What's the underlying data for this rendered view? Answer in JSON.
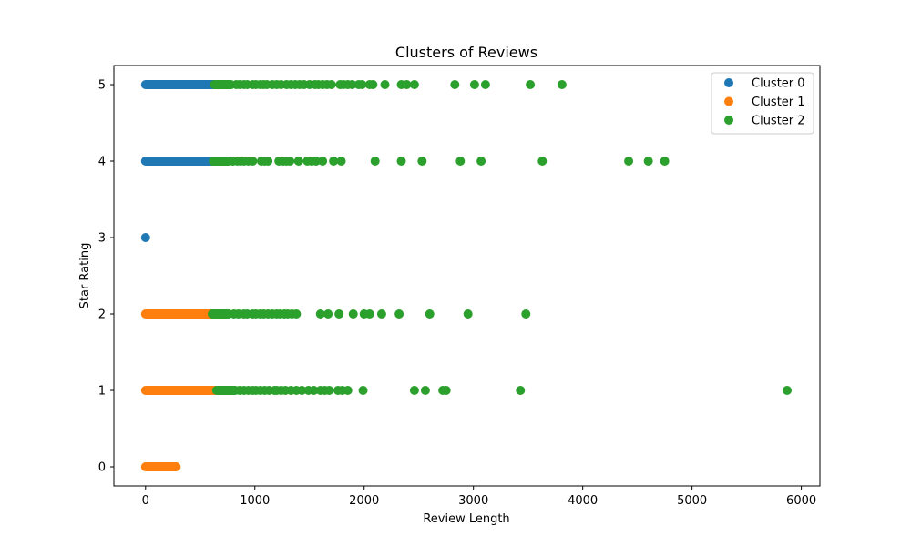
{
  "chart_data": {
    "type": "scatter",
    "title": "Clusters of Reviews",
    "xlabel": "Review Length",
    "ylabel": "Star Rating",
    "xlim": [
      -290,
      6170
    ],
    "ylim": [
      -0.25,
      5.25
    ],
    "xticks": [
      0,
      1000,
      2000,
      3000,
      4000,
      5000,
      6000
    ],
    "yticks": [
      0,
      1,
      2,
      3,
      4,
      5
    ],
    "grid": false,
    "legend_position": "top-right",
    "series": [
      {
        "name": "Cluster 0",
        "color": "#1f77b4",
        "segments": [
          {
            "y": 5,
            "x_start": 0,
            "x_end": 620
          },
          {
            "y": 4,
            "x_start": 0,
            "x_end": 610
          }
        ],
        "points": [
          [
            0,
            3
          ]
        ]
      },
      {
        "name": "Cluster 1",
        "color": "#ff7f0e",
        "segments": [
          {
            "y": 2,
            "x_start": 0,
            "x_end": 600
          },
          {
            "y": 1,
            "x_start": 0,
            "x_end": 640
          },
          {
            "y": 0,
            "x_start": 0,
            "x_end": 280
          }
        ],
        "points": []
      },
      {
        "name": "Cluster 2",
        "color": "#2ca02c",
        "segments": [
          {
            "y": 5,
            "x_start": 630,
            "x_end": 780
          },
          {
            "y": 4,
            "x_start": 620,
            "x_end": 760
          },
          {
            "y": 2,
            "x_start": 610,
            "x_end": 760
          },
          {
            "y": 1,
            "x_start": 650,
            "x_end": 820
          }
        ],
        "points": [
          [
            830,
            5
          ],
          [
            860,
            5
          ],
          [
            900,
            5
          ],
          [
            930,
            5
          ],
          [
            980,
            5
          ],
          [
            1010,
            5
          ],
          [
            1050,
            5
          ],
          [
            1080,
            5
          ],
          [
            1110,
            5
          ],
          [
            1160,
            5
          ],
          [
            1200,
            5
          ],
          [
            1240,
            5
          ],
          [
            1290,
            5
          ],
          [
            1330,
            5
          ],
          [
            1370,
            5
          ],
          [
            1410,
            5
          ],
          [
            1450,
            5
          ],
          [
            1500,
            5
          ],
          [
            1550,
            5
          ],
          [
            1580,
            5
          ],
          [
            1620,
            5
          ],
          [
            1660,
            5
          ],
          [
            1700,
            5
          ],
          [
            1780,
            5
          ],
          [
            1810,
            5
          ],
          [
            1850,
            5
          ],
          [
            1890,
            5
          ],
          [
            1950,
            5
          ],
          [
            1980,
            5
          ],
          [
            2050,
            5
          ],
          [
            2080,
            5
          ],
          [
            2190,
            5
          ],
          [
            2340,
            5
          ],
          [
            2390,
            5
          ],
          [
            2460,
            5
          ],
          [
            2830,
            5
          ],
          [
            3010,
            5
          ],
          [
            3110,
            5
          ],
          [
            3520,
            5
          ],
          [
            3810,
            5
          ],
          [
            800,
            4
          ],
          [
            840,
            4
          ],
          [
            870,
            4
          ],
          [
            900,
            4
          ],
          [
            940,
            4
          ],
          [
            980,
            4
          ],
          [
            1060,
            4
          ],
          [
            1090,
            4
          ],
          [
            1120,
            4
          ],
          [
            1220,
            4
          ],
          [
            1260,
            4
          ],
          [
            1290,
            4
          ],
          [
            1320,
            4
          ],
          [
            1400,
            4
          ],
          [
            1480,
            4
          ],
          [
            1520,
            4
          ],
          [
            1560,
            4
          ],
          [
            1620,
            4
          ],
          [
            1720,
            4
          ],
          [
            1790,
            4
          ],
          [
            2100,
            4
          ],
          [
            2340,
            4
          ],
          [
            2530,
            4
          ],
          [
            2880,
            4
          ],
          [
            3070,
            4
          ],
          [
            3630,
            4
          ],
          [
            4420,
            4
          ],
          [
            4600,
            4
          ],
          [
            4750,
            4
          ],
          [
            810,
            2
          ],
          [
            850,
            2
          ],
          [
            900,
            2
          ],
          [
            930,
            2
          ],
          [
            980,
            2
          ],
          [
            1010,
            2
          ],
          [
            1050,
            2
          ],
          [
            1080,
            2
          ],
          [
            1120,
            2
          ],
          [
            1160,
            2
          ],
          [
            1200,
            2
          ],
          [
            1230,
            2
          ],
          [
            1270,
            2
          ],
          [
            1300,
            2
          ],
          [
            1340,
            2
          ],
          [
            1380,
            2
          ],
          [
            1600,
            2
          ],
          [
            1670,
            2
          ],
          [
            1770,
            2
          ],
          [
            1900,
            2
          ],
          [
            2000,
            2
          ],
          [
            2050,
            2
          ],
          [
            2160,
            2
          ],
          [
            2320,
            2
          ],
          [
            2600,
            2
          ],
          [
            2950,
            2
          ],
          [
            3480,
            2
          ],
          [
            860,
            1
          ],
          [
            900,
            1
          ],
          [
            940,
            1
          ],
          [
            980,
            1
          ],
          [
            1010,
            1
          ],
          [
            1050,
            1
          ],
          [
            1090,
            1
          ],
          [
            1130,
            1
          ],
          [
            1180,
            1
          ],
          [
            1200,
            1
          ],
          [
            1240,
            1
          ],
          [
            1280,
            1
          ],
          [
            1330,
            1
          ],
          [
            1380,
            1
          ],
          [
            1430,
            1
          ],
          [
            1490,
            1
          ],
          [
            1540,
            1
          ],
          [
            1600,
            1
          ],
          [
            1640,
            1
          ],
          [
            1680,
            1
          ],
          [
            1760,
            1
          ],
          [
            1800,
            1
          ],
          [
            1850,
            1
          ],
          [
            1990,
            1
          ],
          [
            2460,
            1
          ],
          [
            2560,
            1
          ],
          [
            2720,
            1
          ],
          [
            2750,
            1
          ],
          [
            3430,
            1
          ],
          [
            5870,
            1
          ]
        ]
      }
    ]
  }
}
